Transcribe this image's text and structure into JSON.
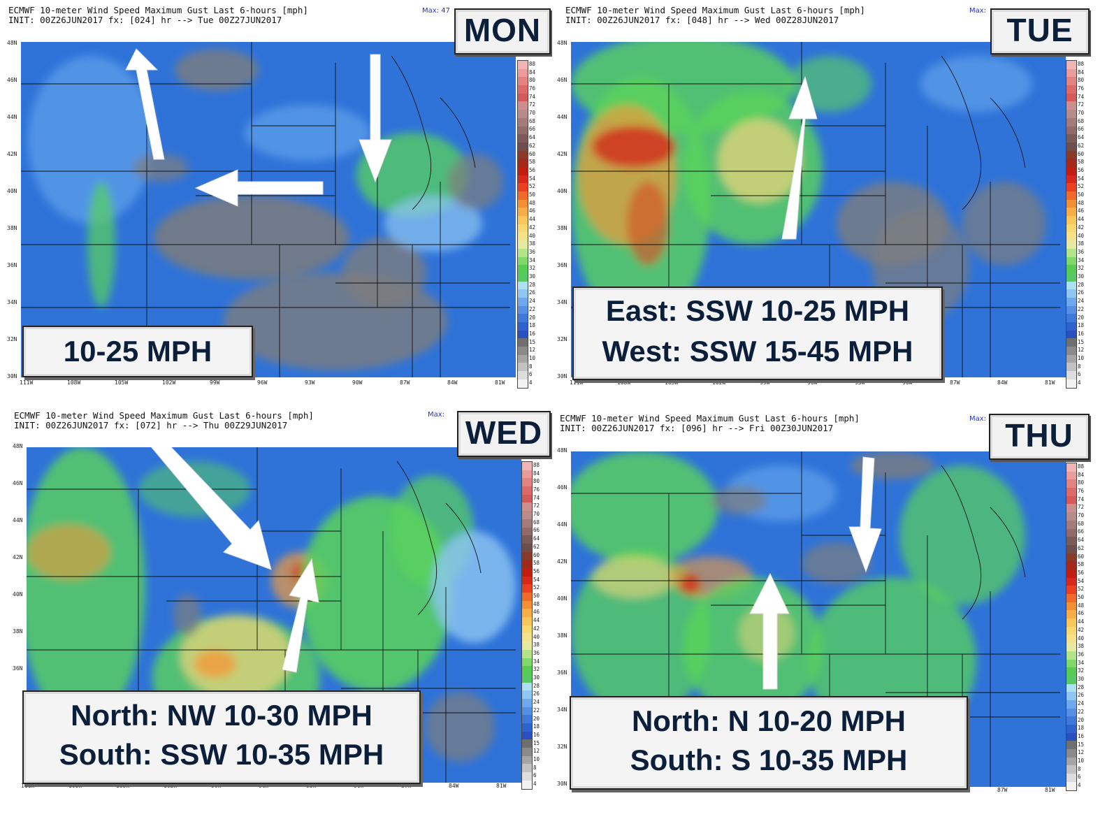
{
  "header_title": "ECMWF 10-meter Wind Speed Maximum Gust Last 6-hours [mph]",
  "max_label": "Max:",
  "max_value_mon": "47",
  "lat_labels": [
    "48N",
    "46N",
    "44N",
    "42N",
    "40N",
    "38N",
    "36N",
    "34N",
    "32N",
    "30N"
  ],
  "lon_labels": [
    "111W",
    "108W",
    "105W",
    "102W",
    "99W",
    "96W",
    "93W",
    "90W",
    "87W",
    "84W",
    "81W"
  ],
  "colorbar_labels": [
    "88",
    "84",
    "80",
    "76",
    "74",
    "72",
    "70",
    "68",
    "66",
    "64",
    "62",
    "60",
    "58",
    "56",
    "54",
    "52",
    "50",
    "48",
    "46",
    "44",
    "42",
    "40",
    "38",
    "36",
    "34",
    "32",
    "30",
    "28",
    "26",
    "24",
    "22",
    "20",
    "18",
    "16",
    "15",
    "12",
    "10",
    "8",
    "6",
    "4"
  ],
  "panels": [
    {
      "day": "MON",
      "init": "INIT: 00Z26JUN2017 fx: [024] hr --> Tue 00Z27JUN2017",
      "lines": [
        "10-25 MPH"
      ]
    },
    {
      "day": "TUE",
      "init": "INIT: 00Z26JUN2017 fx: [048] hr --> Wed 00Z28JUN2017",
      "lines": [
        "East: SSW 10-25 MPH",
        "West: SSW 15-45 MPH"
      ]
    },
    {
      "day": "WED",
      "init": "INIT: 00Z26JUN2017 fx: [072] hr --> Thu 00Z29JUN2017",
      "lines": [
        "North: NW 10-30 MPH",
        "South: SSW 10-35 MPH"
      ]
    },
    {
      "day": "THU",
      "init": "INIT: 00Z26JUN2017 fx: [096] hr --> Fri 00Z30JUN2017",
      "lines": [
        "North: N 10-20 MPH",
        "South: S 10-35 MPH"
      ]
    }
  ],
  "colors": {
    "blue": "#2f73d9",
    "light_blue": "#8fc6f2",
    "green": "#5ad35a",
    "gray": "#7d7d7d",
    "yellow": "#f3d67a",
    "orange": "#f29a3a",
    "red": "#d22a1a",
    "box_text": "#0b1e3a"
  }
}
